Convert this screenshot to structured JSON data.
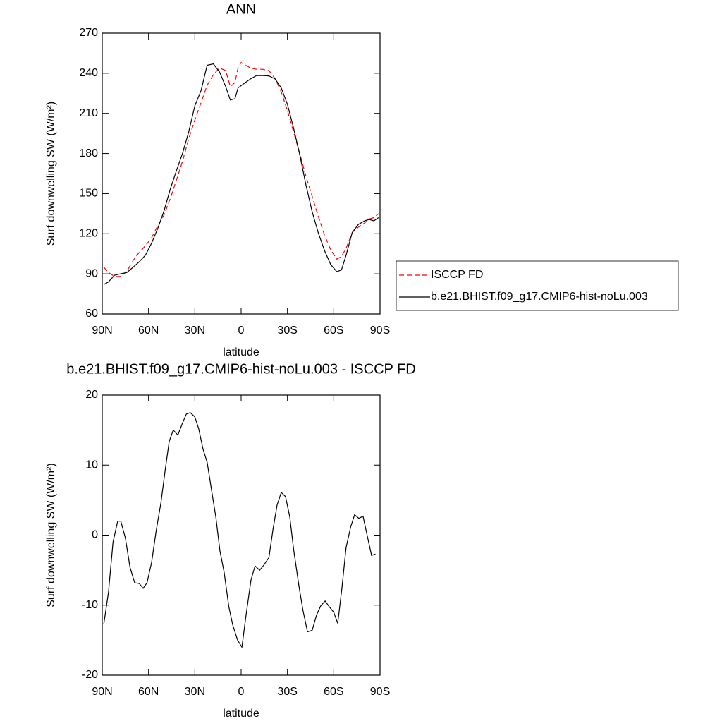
{
  "chart_data": [
    {
      "type": "line",
      "title": "ANN",
      "xlabel": "latitude",
      "ylabel": "Surf downwelling SW (W/m²)",
      "xlim": [
        90,
        -90
      ],
      "ylim": [
        60,
        270
      ],
      "xticks": [
        {
          "value": 90,
          "label": "90N"
        },
        {
          "value": 60,
          "label": "60N"
        },
        {
          "value": 30,
          "label": "30N"
        },
        0,
        {
          "value": -30,
          "label": "30S"
        },
        {
          "value": -60,
          "label": "60S"
        },
        {
          "value": -90,
          "label": "90S"
        }
      ],
      "yticks": [
        270,
        240,
        210,
        180,
        150,
        120,
        90,
        60
      ],
      "legend": "right",
      "series": [
        {
          "name": "ISCCP FD",
          "color": "#ff0000",
          "dash": true,
          "x": [
            89,
            86,
            82,
            78,
            74,
            70,
            66,
            62,
            58,
            54,
            50,
            46,
            42,
            38,
            34,
            30,
            26,
            22,
            18,
            14,
            10,
            7,
            4,
            2,
            0,
            -3,
            -6,
            -10,
            -14,
            -18,
            -22,
            -26,
            -30,
            -34,
            -38,
            -42,
            -46,
            -50,
            -54,
            -58,
            -62,
            -65,
            -68,
            -72,
            -76,
            -80,
            -83,
            -86,
            -89
          ],
          "values": [
            95,
            91,
            88,
            88,
            92,
            100,
            106,
            111,
            117,
            126,
            134,
            146,
            160,
            174,
            191,
            205,
            218,
            231,
            239,
            244,
            242,
            230,
            233,
            244,
            248,
            246,
            244,
            243,
            243,
            242,
            236,
            226,
            212,
            196,
            180,
            163,
            148,
            133,
            119,
            108,
            101,
            103,
            109,
            121,
            125,
            128,
            131,
            132,
            135
          ]
        },
        {
          "name": "b.e21.BHIST.f09_g17.CMIP6-hist-noLu.003",
          "color": "#000000",
          "dash": false,
          "x": [
            89,
            86,
            82,
            78,
            74,
            70,
            66,
            62,
            58,
            54,
            50,
            46,
            42,
            38,
            34,
            30,
            26,
            22,
            18,
            14,
            10,
            7,
            4,
            2,
            -2,
            -6,
            -10,
            -14,
            -18,
            -22,
            -26,
            -30,
            -34,
            -38,
            -42,
            -46,
            -50,
            -54,
            -58,
            -62,
            -65,
            -68,
            -72,
            -76,
            -80,
            -83,
            -86,
            -89
          ],
          "values": [
            82,
            84,
            89,
            90,
            91,
            95,
            99,
            104,
            113,
            124,
            137,
            153,
            167,
            180,
            196,
            215.6,
            227,
            246,
            247,
            241,
            230,
            220,
            221,
            229,
            232.5,
            235.7,
            238.3,
            238.3,
            238,
            235.7,
            229,
            216.7,
            199,
            179,
            156.5,
            136.5,
            120.7,
            107.5,
            97,
            91.6,
            93,
            103.8,
            121,
            127,
            129.6,
            130.7,
            129.6,
            132
          ]
        }
      ]
    },
    {
      "type": "line",
      "title": "b.e21.BHIST.f09_g17.CMIP6-hist-noLu.003 - ISCCP FD",
      "xlabel": "latitude",
      "ylabel": "Surf downwelling SW (W/m²)",
      "xlim": [
        90,
        -90
      ],
      "ylim": [
        -20,
        20
      ],
      "xticks": [
        {
          "value": 90,
          "label": "90N"
        },
        {
          "value": 60,
          "label": "60N"
        },
        {
          "value": 30,
          "label": "30N"
        },
        0,
        {
          "value": -30,
          "label": "30S"
        },
        {
          "value": -60,
          "label": "60S"
        },
        {
          "value": -90,
          "label": "90S"
        }
      ],
      "yticks": [
        20,
        10,
        0,
        -10,
        -20
      ],
      "color": "#000000",
      "x": [
        89,
        86,
        83,
        80,
        78,
        75,
        72,
        69,
        66,
        63.5,
        61,
        58,
        55,
        52,
        49,
        46.6,
        44,
        41,
        38,
        35.5,
        33,
        30,
        27.5,
        24.7,
        22,
        19,
        16.4,
        13.7,
        11,
        8,
        5.5,
        2.3,
        -0.5,
        -3,
        -6.4,
        -9,
        -12,
        -14.6,
        -18,
        -20.7,
        -23.3,
        -26,
        -28.8,
        -31.5,
        -34,
        -37.4,
        -40,
        -43,
        -46,
        -48.9,
        -51.6,
        -54.4,
        -57,
        -60,
        -62.6,
        -65.3,
        -68,
        -71,
        -73.5,
        -76.3,
        -79,
        -81.8,
        -84.5,
        -87
      ],
      "values": [
        -12.7,
        -8.2,
        -1,
        2.0,
        2,
        -0.4,
        -4.6,
        -6.8,
        -6.9,
        -7.6,
        -6.8,
        -3.9,
        0.7,
        4.6,
        9.6,
        13.4,
        15,
        14.3,
        16,
        17.3,
        17.5,
        16.9,
        15.2,
        12.3,
        10.4,
        6.2,
        2.6,
        -2.3,
        -5.3,
        -10.2,
        -12.8,
        -15,
        -16,
        -11.7,
        -6.4,
        -4.4,
        -5,
        -4.3,
        -3.2,
        0.9,
        4.3,
        6.1,
        5.5,
        2.6,
        -2,
        -7.2,
        -10.7,
        -13.8,
        -13.6,
        -11.4,
        -10.1,
        -9.4,
        -10.2,
        -11,
        -12.6,
        -7.6,
        -1.8,
        1.2,
        2.9,
        2.4,
        2.7,
        -0.2,
        -2.9,
        -2.7
      ]
    }
  ]
}
